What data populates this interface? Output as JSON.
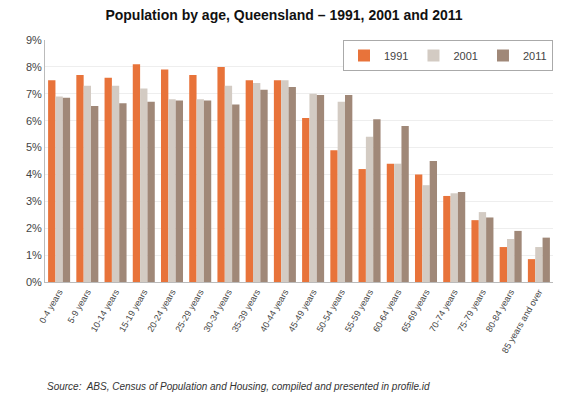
{
  "chart_data": {
    "type": "bar",
    "title": "Population by age, Queensland – 1991, 2001 and 2011",
    "categories": [
      "0-4 years",
      "5-9 years",
      "10-14 years",
      "15-19 years",
      "20-24 years",
      "25-29 years",
      "30-34 years",
      "35-39 years",
      "40-44 years",
      "45-49 years",
      "50-54 years",
      "55-59 years",
      "60-64 years",
      "65-69 years",
      "70-74 years",
      "75-79 years",
      "80-84 years",
      "85 years and over"
    ],
    "series": [
      {
        "name": "1991",
        "color": "#E8733A",
        "values": [
          7.5,
          7.7,
          7.6,
          8.1,
          7.9,
          7.7,
          8.0,
          7.5,
          7.5,
          6.1,
          4.9,
          4.2,
          4.4,
          4.0,
          3.2,
          2.3,
          1.3,
          0.85
        ]
      },
      {
        "name": "2001",
        "color": "#D3CBC3",
        "values": [
          6.9,
          7.3,
          7.3,
          7.2,
          6.8,
          6.8,
          7.3,
          7.4,
          7.5,
          7.0,
          6.7,
          5.4,
          4.4,
          3.6,
          3.3,
          2.6,
          1.6,
          1.3
        ]
      },
      {
        "name": "2011",
        "color": "#A08878",
        "values": [
          6.85,
          6.55,
          6.65,
          6.7,
          6.75,
          6.75,
          6.6,
          7.15,
          7.25,
          6.95,
          6.95,
          6.05,
          5.8,
          4.5,
          3.35,
          2.4,
          1.9,
          1.65
        ]
      }
    ],
    "ylim": [
      0,
      9
    ],
    "yticks": [
      {
        "value": 0,
        "label": "0%"
      },
      {
        "value": 1,
        "label": "1%"
      },
      {
        "value": 2,
        "label": "2%"
      },
      {
        "value": 3,
        "label": "3%"
      },
      {
        "value": 4,
        "label": "4%"
      },
      {
        "value": 5,
        "label": "5%"
      },
      {
        "value": 6,
        "label": "6%"
      },
      {
        "value": 7,
        "label": "7%"
      },
      {
        "value": 8,
        "label": "8%"
      },
      {
        "value": 9,
        "label": "9%"
      }
    ],
    "grid": true,
    "legend": "upper right",
    "annotations": [
      "Source:  ABS, Census of Population and Housing, compiled and presented in profile.id"
    ]
  }
}
